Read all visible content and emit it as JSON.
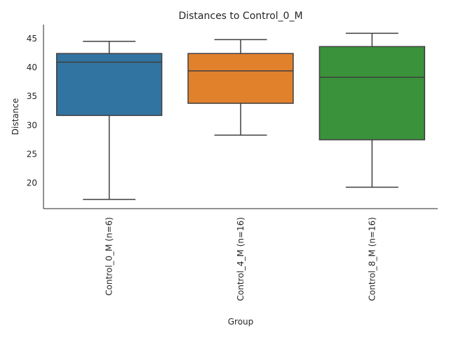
{
  "chart_data": {
    "type": "box",
    "title": "Distances to Control_0_M",
    "xlabel": "Group",
    "ylabel": "Distance",
    "ylim": [
      15.6,
      47.4
    ],
    "yticks": [
      20,
      25,
      30,
      35,
      40,
      45
    ],
    "grid": false,
    "categories": [
      "Control_0_M (n=6)",
      "Control_4_M (n=16)",
      "Control_8_M (n=16)"
    ],
    "boxes": [
      {
        "min": 17.2,
        "q1": 31.7,
        "median": 40.9,
        "q3": 42.4,
        "max": 44.5,
        "color": "#3274a1"
      },
      {
        "min": 28.3,
        "q1": 33.8,
        "median": 39.4,
        "q3": 42.4,
        "max": 44.8,
        "color": "#e1812c"
      },
      {
        "min": 19.3,
        "q1": 27.5,
        "median": 38.3,
        "q3": 43.6,
        "max": 45.9,
        "color": "#3a923a"
      }
    ]
  }
}
